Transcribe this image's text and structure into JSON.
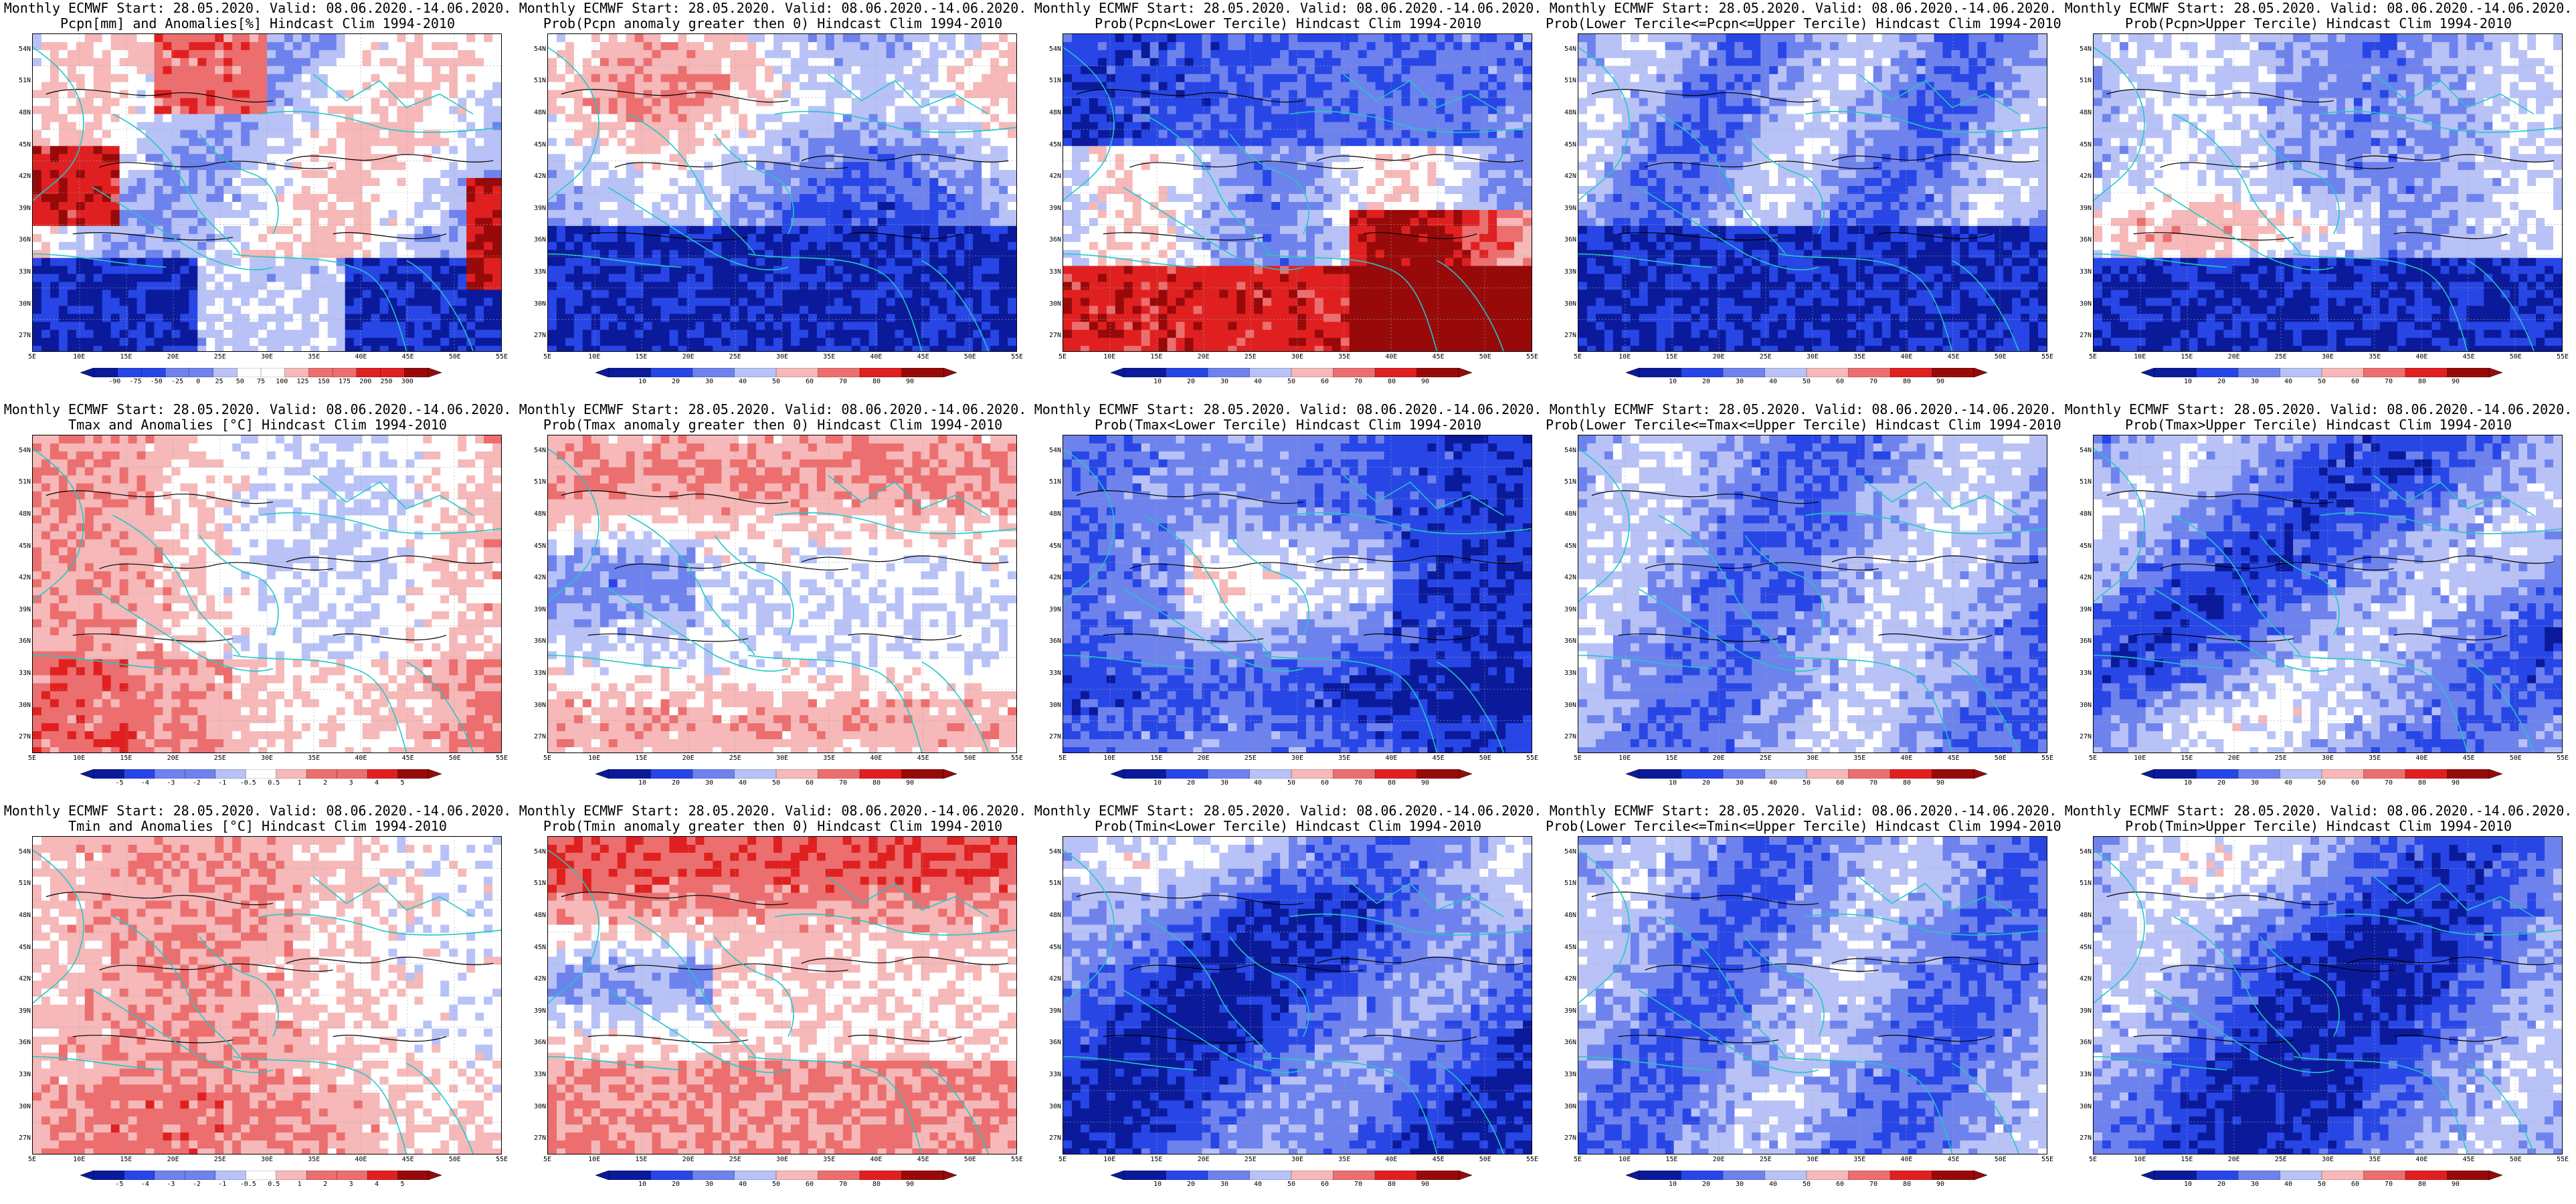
{
  "map_axes": {
    "lat_labels": [
      "54N",
      "51N",
      "48N",
      "45N",
      "42N",
      "39N",
      "36N",
      "33N",
      "30N",
      "27N"
    ],
    "lon_labels": [
      "5E",
      "10E",
      "15E",
      "20E",
      "25E",
      "30E",
      "35E",
      "40E",
      "45E",
      "50E",
      "55E"
    ]
  },
  "colors": {
    "deep_blue": "#0a1a9a",
    "blue": "#2846e6",
    "mid_blue": "#6e82ee",
    "light_blue": "#b8c2f6",
    "white": "#ffffff",
    "light_red": "#f6b8b8",
    "mid_red": "#ec6e6e",
    "red": "#e02020",
    "dark_red": "#980a0a",
    "coast": "#20c8c8",
    "contour": "#000000"
  },
  "colorbars": {
    "precip_anom": [
      "-90",
      "-75",
      "-50",
      "-25",
      "0",
      "25",
      "50",
      "75",
      "100",
      "125",
      "150",
      "175",
      "200",
      "250",
      "300"
    ],
    "prob": [
      "10",
      "20",
      "30",
      "40",
      "50",
      "60",
      "70",
      "80",
      "90"
    ],
    "temp_anom": [
      "-5",
      "-4",
      "-3",
      "-2",
      "-1",
      "-0.5",
      "0.5",
      "1",
      "2",
      "3",
      "4",
      "5"
    ]
  },
  "panels": [
    {
      "line1": "Monthly ECMWF Start: 28.05.2020. Valid: 08.06.2020.-14.06.2020.",
      "line2": "Pcpn[mm] and Anomalies[%] Hindcast Clim 1994-2010",
      "cbar": "precip_anom",
      "pattern": "precip_anom"
    },
    {
      "line1": "Monthly ECMWF Start: 28.05.2020. Valid: 08.06.2020.-14.06.2020.",
      "line2": "Prob(Pcpn anomaly greater then 0) Hindcast Clim 1994-2010",
      "cbar": "prob",
      "pattern": "p_pos"
    },
    {
      "line1": "Monthly ECMWF Start: 28.05.2020. Valid: 08.06.2020.-14.06.2020.",
      "line2": "Prob(Pcpn<Lower Tercile) Hindcast Clim 1994-2010",
      "cbar": "prob",
      "pattern": "p_low"
    },
    {
      "line1": "Monthly ECMWF Start: 28.05.2020. Valid: 08.06.2020.-14.06.2020.",
      "line2": "Prob(Lower Tercile<=Pcpn<=Upper Tercile) Hindcast Clim 1994-2010",
      "cbar": "prob",
      "pattern": "p_mid"
    },
    {
      "line1": "Monthly ECMWF Start: 28.05.2020. Valid: 08.06.2020.-14.06.2020.",
      "line2": "Prob(Pcpn>Upper Tercile) Hindcast Clim 1994-2010",
      "cbar": "prob",
      "pattern": "p_up"
    },
    {
      "line1": "Monthly ECMWF Start: 28.05.2020. Valid: 08.06.2020.-14.06.2020.",
      "line2": "Tmax and Anomalies [°C] Hindcast Clim 1994-2010",
      "cbar": "temp_anom",
      "pattern": "t_anom"
    },
    {
      "line1": "Monthly ECMWF Start: 28.05.2020. Valid: 08.06.2020.-14.06.2020.",
      "line2": "Prob(Tmax anomaly greater then 0) Hindcast Clim 1994-2010",
      "cbar": "prob",
      "pattern": "t_pos"
    },
    {
      "line1": "Monthly ECMWF Start: 28.05.2020. Valid: 08.06.2020.-14.06.2020.",
      "line2": "Prob(Tmax<Lower Tercile) Hindcast Clim 1994-2010",
      "cbar": "prob",
      "pattern": "t_low"
    },
    {
      "line1": "Monthly ECMWF Start: 28.05.2020. Valid: 08.06.2020.-14.06.2020.",
      "line2": "Prob(Lower Tercile<=Tmax<=Upper Tercile) Hindcast Clim 1994-2010",
      "cbar": "prob",
      "pattern": "t_mid"
    },
    {
      "line1": "Monthly ECMWF Start: 28.05.2020. Valid: 08.06.2020.-14.06.2020.",
      "line2": "Prob(Tmax>Upper Tercile) Hindcast Clim 1994-2010",
      "cbar": "prob",
      "pattern": "t_up"
    },
    {
      "line1": "Monthly ECMWF Start: 28.05.2020. Valid: 08.06.2020.-14.06.2020.",
      "line2": "Tmin and Anomalies [°C] Hindcast Clim 1994-2010",
      "cbar": "temp_anom",
      "pattern": "t_anom2"
    },
    {
      "line1": "Monthly ECMWF Start: 28.05.2020. Valid: 08.06.2020.-14.06.2020.",
      "line2": "Prob(Tmin anomaly greater then 0) Hindcast Clim 1994-2010",
      "cbar": "prob",
      "pattern": "t_pos2"
    },
    {
      "line1": "Monthly ECMWF Start: 28.05.2020. Valid: 08.06.2020.-14.06.2020.",
      "line2": "Prob(Tmin<Lower Tercile) Hindcast Clim 1994-2010",
      "cbar": "prob",
      "pattern": "t_low2"
    },
    {
      "line1": "Monthly ECMWF Start: 28.05.2020. Valid: 08.06.2020.-14.06.2020.",
      "line2": "Prob(Lower Tercile<=Tmin<=Upper Tercile) Hindcast Clim 1994-2010",
      "cbar": "prob",
      "pattern": "t_mid2"
    },
    {
      "line1": "Monthly ECMWF Start: 28.05.2020. Valid: 08.06.2020.-14.06.2020.",
      "line2": "Prob(Tmin>Upper Tercile) Hindcast Clim 1994-2010",
      "cbar": "prob",
      "pattern": "t_up2"
    }
  ]
}
